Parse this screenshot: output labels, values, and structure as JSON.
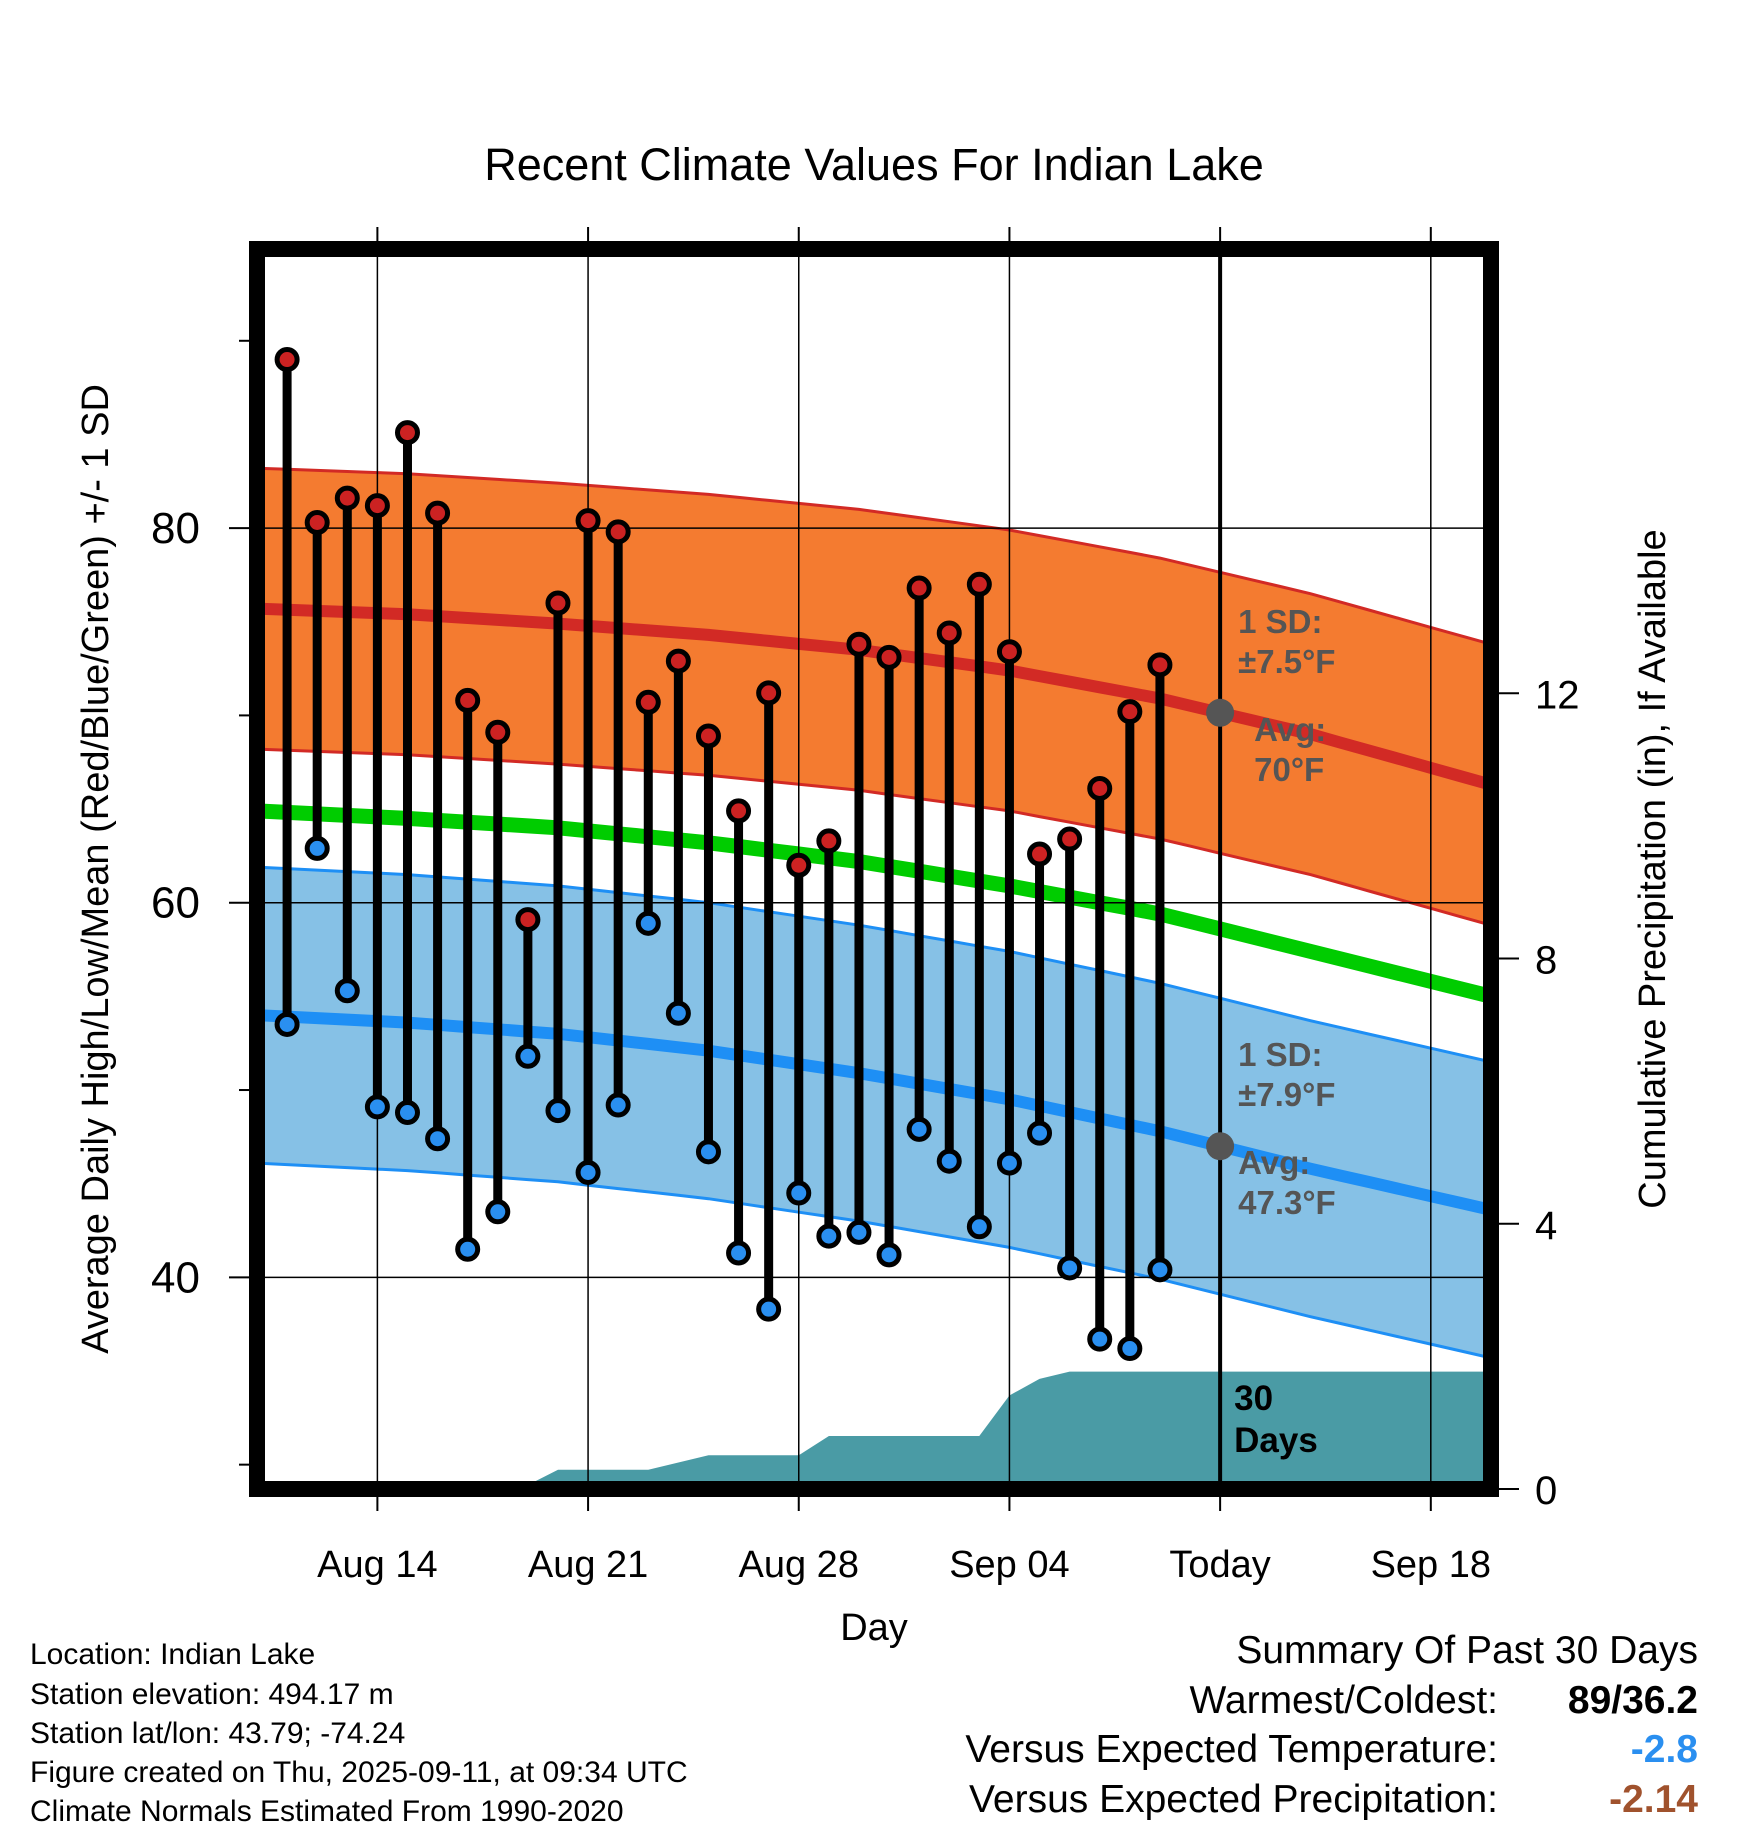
{
  "chart_data": {
    "type": "line",
    "title": "Recent Climate Values For Indian Lake",
    "xlabel": "Day",
    "ylabel": "Average Daily High/Low/Mean (Red/Blue/Green) +/- 1 SD",
    "y2label": "Cumulative Precipitation (in), If Available",
    "x_ticks": [
      "Aug 14",
      "Aug 21",
      "Aug 28",
      "Sep 04",
      "Today",
      "Sep 18"
    ],
    "y_ticks": [
      "40",
      "60",
      "80"
    ],
    "y2_ticks": [
      "0",
      "4",
      "8",
      "12"
    ],
    "xlim": [
      "2025-08-10",
      "2025-09-20"
    ],
    "ylim": [
      28.7,
      94.9
    ],
    "y2lim": [
      0,
      18.7
    ],
    "today": "2025-09-11",
    "grid": true,
    "normals": {
      "x": [
        "2025-08-10",
        "2025-08-15",
        "2025-08-20",
        "2025-08-25",
        "2025-08-30",
        "2025-09-04",
        "2025-09-09",
        "2025-09-14",
        "2025-09-20"
      ],
      "high": [
        75.7,
        75.4,
        74.9,
        74.3,
        73.5,
        72.4,
        70.9,
        69.0,
        66.3
      ],
      "low": [
        54.0,
        53.6,
        53.0,
        52.1,
        50.9,
        49.5,
        47.8,
        45.8,
        43.6
      ],
      "mean": [
        64.9,
        64.5,
        64.0,
        63.2,
        62.2,
        60.9,
        59.4,
        57.4,
        55.0
      ],
      "high_sd": 7.5,
      "low_sd": 7.9
    },
    "daily": {
      "x": [
        "2025-08-11",
        "2025-08-12",
        "2025-08-13",
        "2025-08-14",
        "2025-08-15",
        "2025-08-16",
        "2025-08-17",
        "2025-08-18",
        "2025-08-19",
        "2025-08-20",
        "2025-08-21",
        "2025-08-22",
        "2025-08-23",
        "2025-08-24",
        "2025-08-25",
        "2025-08-26",
        "2025-08-27",
        "2025-08-28",
        "2025-08-29",
        "2025-08-30",
        "2025-08-31",
        "2025-09-01",
        "2025-09-02",
        "2025-09-03",
        "2025-09-04",
        "2025-09-05",
        "2025-09-06",
        "2025-09-07",
        "2025-09-08",
        "2025-09-09",
        "2025-09-10"
      ],
      "high": [
        89.0,
        80.3,
        81.6,
        81.2,
        85.1,
        80.8,
        70.8,
        69.1,
        59.1,
        76.0,
        80.4,
        79.8,
        70.7,
        72.9,
        68.9,
        64.9,
        71.2,
        62.0,
        63.3,
        73.8,
        73.1,
        76.8,
        74.4,
        77.0,
        73.4,
        62.6,
        63.4,
        66.1,
        70.2,
        72.7,
        null
      ],
      "low": [
        53.5,
        62.9,
        55.3,
        49.1,
        48.8,
        47.4,
        41.5,
        43.5,
        51.8,
        48.9,
        45.6,
        49.2,
        58.9,
        54.1,
        46.7,
        41.3,
        38.3,
        44.5,
        42.2,
        42.4,
        41.2,
        47.9,
        46.2,
        42.7,
        46.1,
        47.7,
        40.5,
        36.7,
        36.2,
        40.4,
        null
      ]
    },
    "precip_cumulative": {
      "x": [
        "2025-08-10",
        "2025-08-11",
        "2025-08-12",
        "2025-08-13",
        "2025-08-14",
        "2025-08-15",
        "2025-08-16",
        "2025-08-17",
        "2025-08-18",
        "2025-08-19",
        "2025-08-20",
        "2025-08-21",
        "2025-08-22",
        "2025-08-23",
        "2025-08-24",
        "2025-08-25",
        "2025-08-26",
        "2025-08-27",
        "2025-08-28",
        "2025-08-29",
        "2025-08-30",
        "2025-08-31",
        "2025-09-01",
        "2025-09-02",
        "2025-09-03",
        "2025-09-04",
        "2025-09-05",
        "2025-09-06",
        "2025-09-07",
        "2025-09-08",
        "2025-09-09",
        "2025-09-10",
        "2025-09-11",
        "2025-09-20"
      ],
      "values": [
        0,
        0,
        0.03,
        0.03,
        0.03,
        0.03,
        0.03,
        0.03,
        0.03,
        0.06,
        0.29,
        0.29,
        0.29,
        0.29,
        0.4,
        0.51,
        0.51,
        0.51,
        0.51,
        0.8,
        0.8,
        0.8,
        0.8,
        0.8,
        0.8,
        1.41,
        1.66,
        1.77,
        1.77,
        1.77,
        1.77,
        1.77,
        1.77,
        1.77
      ]
    },
    "annotations": {
      "high_sd_title": "1 SD:",
      "high_sd_value": "±7.5°F",
      "high_avg_title": "Avg:",
      "high_avg_value": "70°F",
      "low_sd_title": "1 SD:",
      "low_sd_value": "±7.9°F",
      "low_avg_title": "Avg:",
      "low_avg_value": "47.3°F",
      "days_number": "30",
      "days_label": "Days"
    },
    "colors": {
      "high_band": "#f47b30",
      "high_line": "#d22a25",
      "low_band": "#86c1e6",
      "low_line": "#1e8ff5",
      "mean_line": "#00cc00",
      "precip": "#4a9ba5",
      "high_marker": "#cc2222",
      "low_marker": "#2a8ff0",
      "annotation": "#555555"
    }
  },
  "station": {
    "location": "Location: Indian Lake",
    "elevation": "Station elevation: 494.17 m",
    "latlon": "Station lat/lon: 43.79; -74.24",
    "created": "Figure created on Thu, 2025-09-11, at 09:34 UTC",
    "normals": "Climate Normals Estimated From 1990-2020"
  },
  "summary": {
    "title": "Summary Of Past 30 Days",
    "warmest_label": "Warmest/Coldest:",
    "warmest_value": "89/36.2",
    "temp_label": "Versus Expected Temperature:",
    "temp_value": "-2.8",
    "temp_color": "#2a8ff0",
    "precip_label": "Versus Expected Precipitation:",
    "precip_value": "-2.14",
    "precip_color": "#a0522d"
  }
}
